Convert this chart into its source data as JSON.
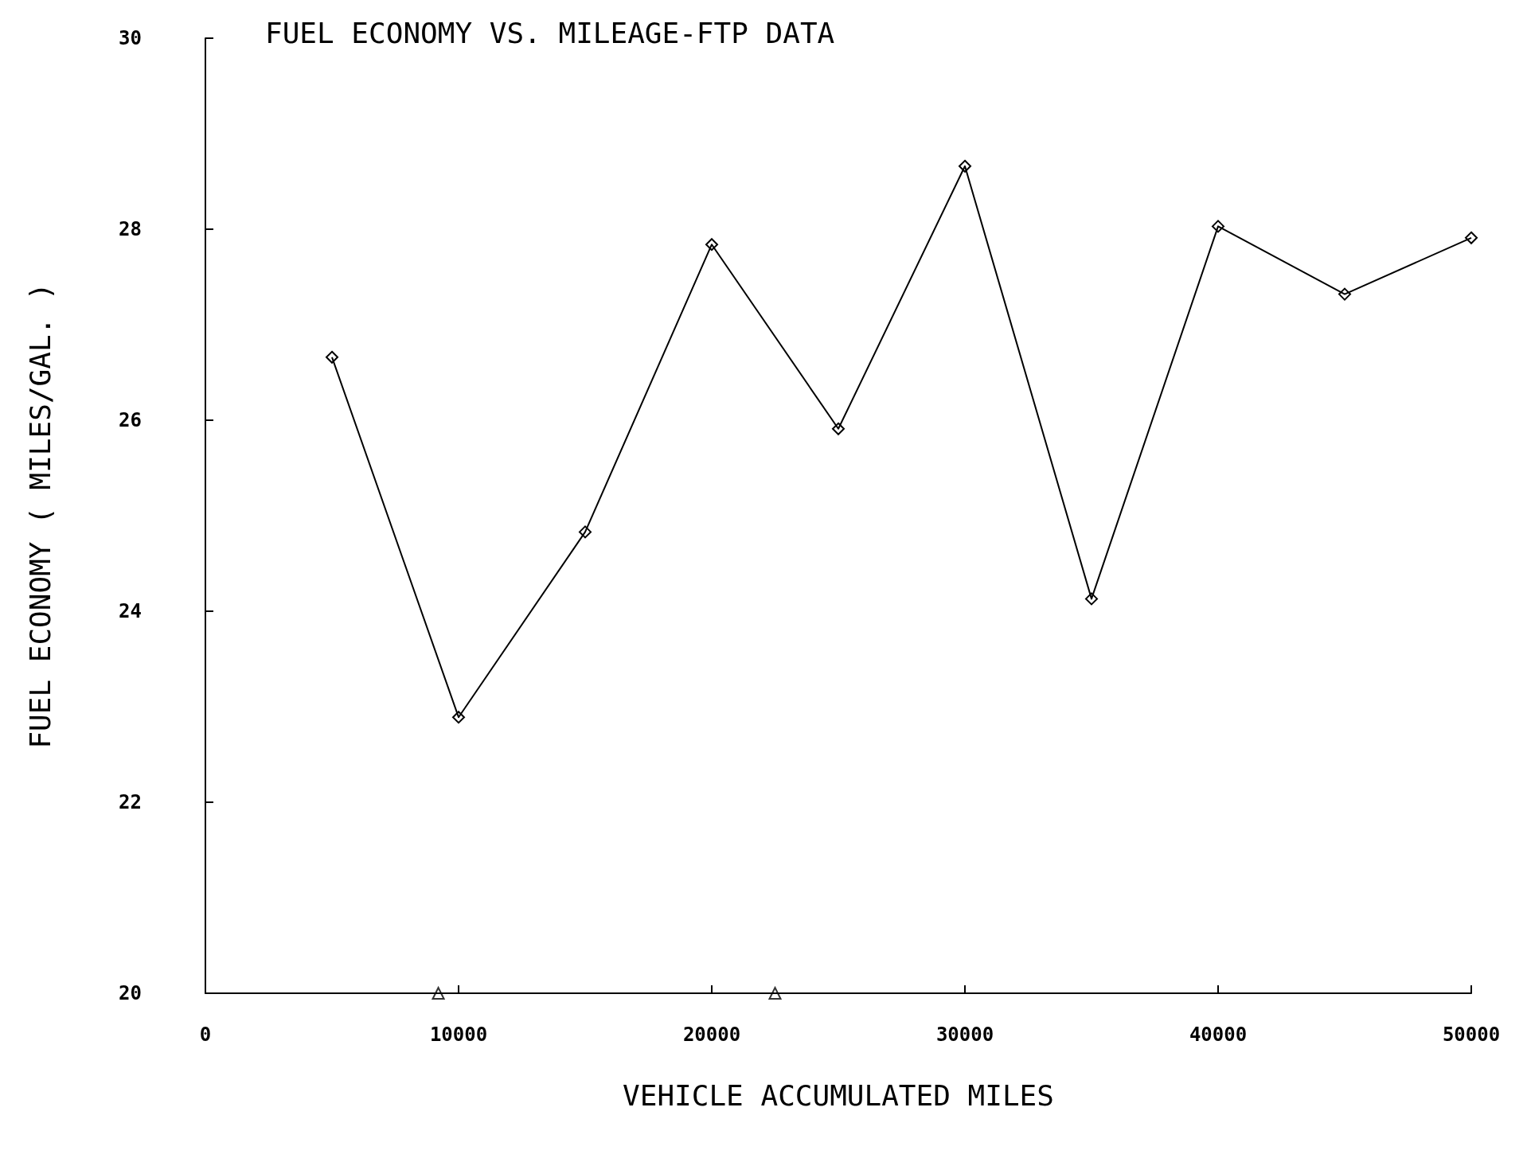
{
  "chart_data": {
    "type": "line",
    "title": "FUEL ECONOMY VS. MILEAGE-FTP DATA",
    "xlabel": "VEHICLE ACCUMULATED MILES",
    "ylabel": "FUEL ECONOMY ( MILES/GAL. )",
    "series": [
      {
        "color": "#000000",
        "marker": "diamond",
        "x": [
          5000,
          10000,
          15000,
          20000,
          25000,
          30000,
          35000,
          40000,
          45000,
          50000
        ],
        "values": [
          26.66,
          22.89,
          24.83,
          27.84,
          25.91,
          28.66,
          24.13,
          28.03,
          27.32,
          27.91
        ]
      },
      {
        "type": "scatter",
        "color": "#000000",
        "marker": "triangle",
        "x": [
          9200,
          22500
        ],
        "values": [
          20,
          20
        ]
      }
    ],
    "xlim": [
      0,
      50000
    ],
    "xticks": [
      0,
      10000,
      20000,
      30000,
      40000,
      50000
    ],
    "ylim": [
      20,
      30
    ],
    "yticks": [
      20,
      22,
      24,
      26,
      28,
      30
    ],
    "grid": false
  }
}
